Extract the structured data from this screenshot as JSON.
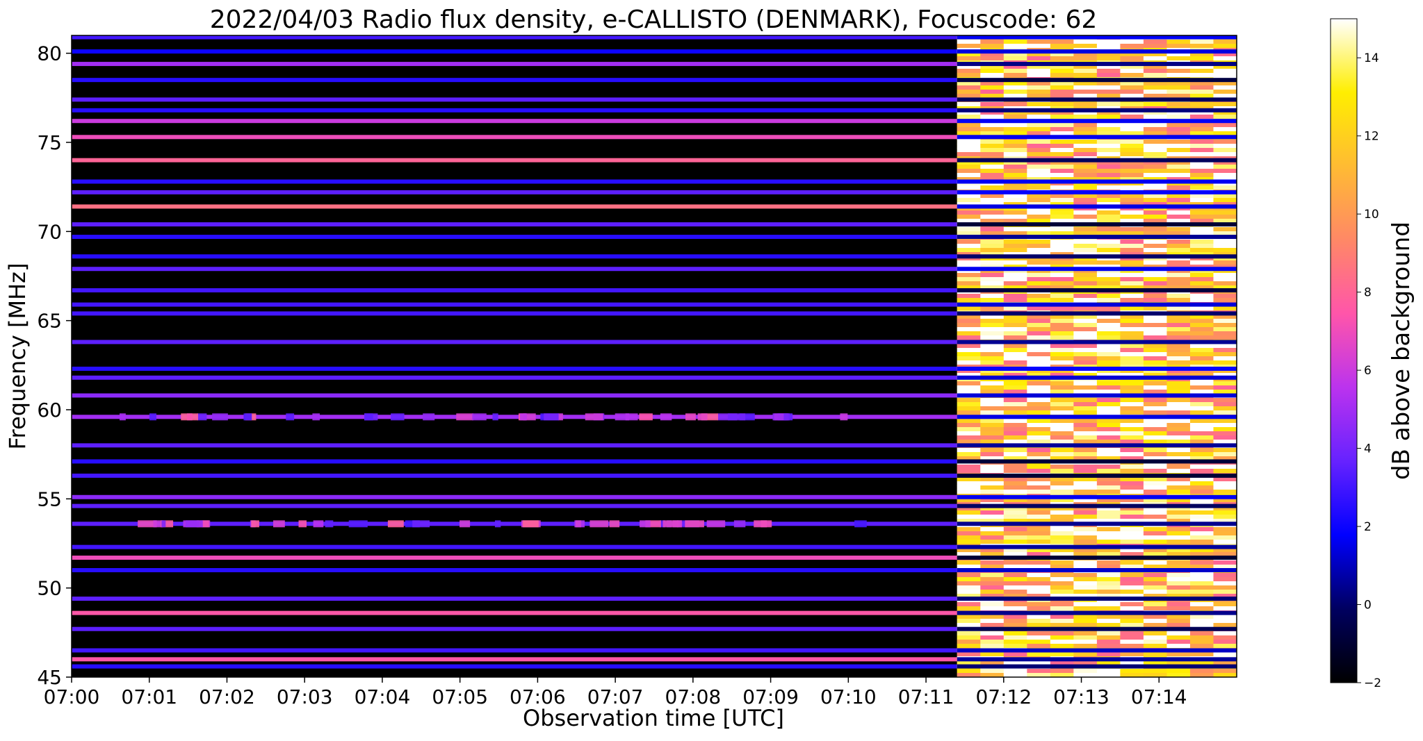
{
  "chart_data": {
    "type": "heatmap",
    "title": "2022/04/03  Radio flux density, e-CALLISTO (DENMARK), Focuscode: 62",
    "xlabel": "Observation time [UTC]",
    "ylabel": "Frequency [MHz]",
    "x_range": [
      "07:00",
      "07:15"
    ],
    "ylim": [
      45,
      81
    ],
    "x_ticks": [
      "07:00",
      "07:01",
      "07:02",
      "07:03",
      "07:04",
      "07:05",
      "07:06",
      "07:07",
      "07:08",
      "07:09",
      "07:10",
      "07:11",
      "07:12",
      "07:13",
      "07:14"
    ],
    "y_ticks": [
      "45",
      "50",
      "55",
      "60",
      "65",
      "70",
      "75",
      "80"
    ],
    "colorbar": {
      "label": "dB above background",
      "range": [
        -2,
        15
      ],
      "ticks": [
        "-2",
        "0",
        "2",
        "4",
        "6",
        "8",
        "10",
        "12",
        "14"
      ],
      "colormap": "gnuplot2",
      "colors": [
        "#000000",
        "#000060",
        "#0000ff",
        "#6622ff",
        "#bb33ee",
        "#ff55aa",
        "#ff8866",
        "#ffbb33",
        "#ffee00",
        "#ffffff"
      ]
    },
    "regime_change_time": "07:11:24",
    "bands": [
      {
        "f_mhz": 80.9,
        "level_before": 3
      },
      {
        "f_mhz": 80.1,
        "level_before": 2
      },
      {
        "f_mhz": 79.4,
        "level_before": 5
      },
      {
        "f_mhz": 78.5,
        "level_before": 2.5
      },
      {
        "f_mhz": 77.4,
        "level_before": 3.5
      },
      {
        "f_mhz": 76.8,
        "level_before": 2.5
      },
      {
        "f_mhz": 76.2,
        "level_before": 6
      },
      {
        "f_mhz": 75.3,
        "level_before": 7
      },
      {
        "f_mhz": 74.0,
        "level_before": 8
      },
      {
        "f_mhz": 72.8,
        "level_before": 2.5
      },
      {
        "f_mhz": 72.2,
        "level_before": 3.5
      },
      {
        "f_mhz": 71.4,
        "level_before": 8.5
      },
      {
        "f_mhz": 70.4,
        "level_before": 3.5
      },
      {
        "f_mhz": 69.7,
        "level_before": 2.5
      },
      {
        "f_mhz": 68.6,
        "level_before": 2.5
      },
      {
        "f_mhz": 67.9,
        "level_before": 3.5
      },
      {
        "f_mhz": 66.7,
        "level_before": 3
      },
      {
        "f_mhz": 65.9,
        "level_before": 3
      },
      {
        "f_mhz": 65.4,
        "level_before": 3
      },
      {
        "f_mhz": 63.8,
        "level_before": 3.5
      },
      {
        "f_mhz": 62.3,
        "level_before": 2.5
      },
      {
        "f_mhz": 61.8,
        "level_before": 3.5
      },
      {
        "f_mhz": 60.8,
        "level_before": 4.5
      },
      {
        "f_mhz": 59.6,
        "level_before": 5
      },
      {
        "f_mhz": 58.0,
        "level_before": 3.5
      },
      {
        "f_mhz": 57.1,
        "level_before": 2.5
      },
      {
        "f_mhz": 56.3,
        "level_before": 3
      },
      {
        "f_mhz": 55.1,
        "level_before": 4.5
      },
      {
        "f_mhz": 54.6,
        "level_before": 3.5
      },
      {
        "f_mhz": 53.6,
        "level_before": 3.5
      },
      {
        "f_mhz": 52.3,
        "level_before": 3
      },
      {
        "f_mhz": 51.7,
        "level_before": 7
      },
      {
        "f_mhz": 51.0,
        "level_before": 2.5
      },
      {
        "f_mhz": 49.4,
        "level_before": 3.5
      },
      {
        "f_mhz": 48.6,
        "level_before": 7.5
      },
      {
        "f_mhz": 47.7,
        "level_before": 3.5
      },
      {
        "f_mhz": 46.5,
        "level_before": 3
      },
      {
        "f_mhz": 46.0,
        "level_before": 7.5
      },
      {
        "f_mhz": 45.6,
        "level_before": 2.5
      }
    ],
    "gaps": [
      {
        "f_min": 70.7,
        "f_max": 71.1
      }
    ]
  }
}
